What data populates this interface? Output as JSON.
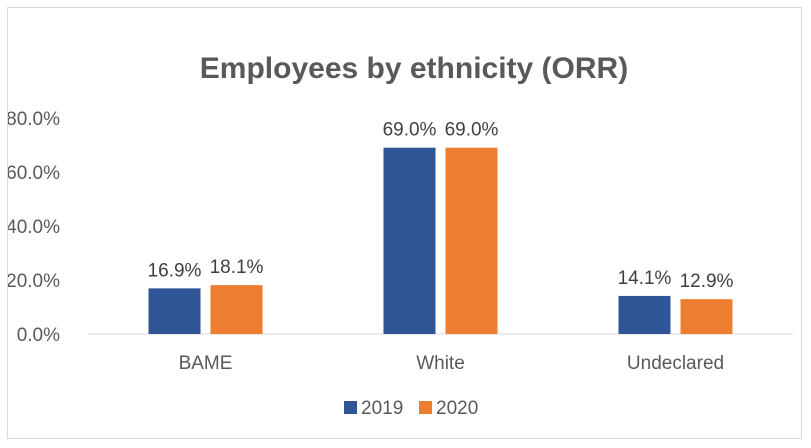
{
  "chart_data": {
    "type": "bar",
    "title": "Employees by ethnicity (ORR)",
    "categories": [
      "BAME",
      "White",
      "Undeclared"
    ],
    "series": [
      {
        "name": "2019",
        "values": [
          16.9,
          69.0,
          14.1
        ],
        "labels": [
          "16.9%",
          "69.0%",
          "14.1%"
        ],
        "color": "#2f5597"
      },
      {
        "name": "2020",
        "values": [
          18.1,
          69.0,
          12.9
        ],
        "labels": [
          "18.1%",
          "69.0%",
          "12.9%"
        ],
        "color": "#ed7d31"
      }
    ],
    "ylim": [
      0,
      80
    ],
    "yticks": [
      "0.0%",
      "20.0%",
      "40.0%",
      "60.0%",
      "80.0%"
    ],
    "ytick_values": [
      0,
      20,
      40,
      60,
      80
    ],
    "gridlines": false,
    "legend_position": "bottom"
  }
}
